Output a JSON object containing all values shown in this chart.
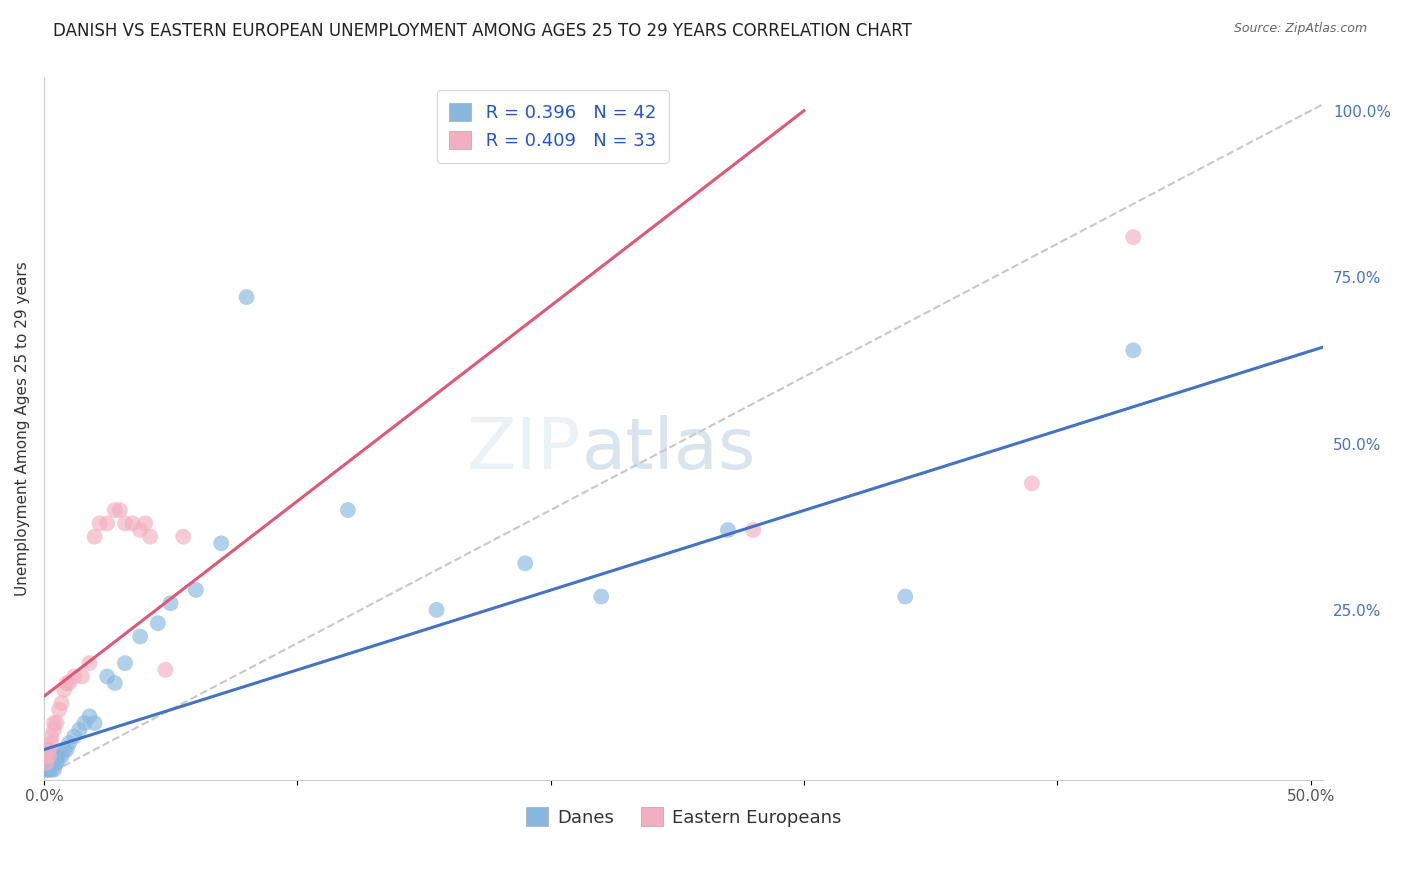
{
  "title": "DANISH VS EASTERN EUROPEAN UNEMPLOYMENT AMONG AGES 25 TO 29 YEARS CORRELATION CHART",
  "source": "Source: ZipAtlas.com",
  "ylabel": "Unemployment Among Ages 25 to 29 years",
  "xlim": [
    0.0,
    0.505
  ],
  "ylim": [
    -0.005,
    1.05
  ],
  "background_color": "#ffffff",
  "grid_color": "#d0d0d0",
  "blue_color": "#88b8e0",
  "pink_color": "#f2afc0",
  "blue_line_color": "#4472c4",
  "pink_line_color": "#e05878",
  "ref_line_color": "#c8c8c8",
  "legend_R1": "R = 0.396",
  "legend_N1": "N = 42",
  "legend_R2": "R = 0.409",
  "legend_N2": "N = 33",
  "legend_label1": "Danes",
  "legend_label2": "Eastern Europeans",
  "blue_line_x0": 0.0,
  "blue_line_y0": 0.04,
  "blue_line_x1": 0.505,
  "blue_line_y1": 0.645,
  "pink_line_x0": 0.0,
  "pink_line_y0": 0.12,
  "pink_line_x1": 0.3,
  "pink_line_y1": 1.0,
  "ref_line_x0": 0.0,
  "ref_line_y0": 0.0,
  "ref_line_x1": 0.505,
  "ref_line_y1": 1.01,
  "danes_x": [
    0.001,
    0.001,
    0.001,
    0.002,
    0.002,
    0.002,
    0.002,
    0.003,
    0.003,
    0.003,
    0.004,
    0.004,
    0.004,
    0.005,
    0.005,
    0.005,
    0.006,
    0.007,
    0.008,
    0.009,
    0.01,
    0.012,
    0.014,
    0.016,
    0.018,
    0.02,
    0.025,
    0.028,
    0.032,
    0.038,
    0.045,
    0.05,
    0.06,
    0.07,
    0.08,
    0.12,
    0.155,
    0.19,
    0.22,
    0.27,
    0.34,
    0.43
  ],
  "danes_y": [
    0.01,
    0.01,
    0.02,
    0.01,
    0.01,
    0.02,
    0.02,
    0.01,
    0.02,
    0.03,
    0.01,
    0.02,
    0.03,
    0.02,
    0.02,
    0.03,
    0.03,
    0.03,
    0.04,
    0.04,
    0.05,
    0.06,
    0.07,
    0.08,
    0.09,
    0.08,
    0.15,
    0.14,
    0.17,
    0.21,
    0.23,
    0.26,
    0.28,
    0.35,
    0.72,
    0.4,
    0.25,
    0.32,
    0.27,
    0.37,
    0.27,
    0.64
  ],
  "eastern_x": [
    0.001,
    0.001,
    0.001,
    0.002,
    0.002,
    0.003,
    0.003,
    0.004,
    0.004,
    0.005,
    0.006,
    0.007,
    0.008,
    0.009,
    0.01,
    0.012,
    0.015,
    0.018,
    0.02,
    0.022,
    0.025,
    0.028,
    0.03,
    0.032,
    0.035,
    0.038,
    0.04,
    0.042,
    0.048,
    0.055,
    0.28,
    0.39,
    0.43
  ],
  "eastern_y": [
    0.02,
    0.03,
    0.04,
    0.03,
    0.04,
    0.05,
    0.06,
    0.07,
    0.08,
    0.08,
    0.1,
    0.11,
    0.13,
    0.14,
    0.14,
    0.15,
    0.15,
    0.17,
    0.36,
    0.38,
    0.38,
    0.4,
    0.4,
    0.38,
    0.38,
    0.37,
    0.38,
    0.36,
    0.16,
    0.36,
    0.37,
    0.44,
    0.81
  ],
  "title_fontsize": 12,
  "axis_fontsize": 11,
  "tick_fontsize": 11,
  "legend_fontsize": 13
}
